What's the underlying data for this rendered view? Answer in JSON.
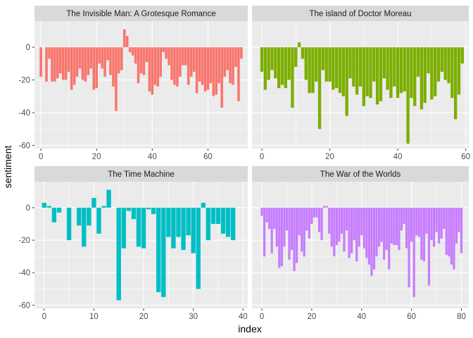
{
  "chart_data": {
    "type": "bar",
    "xlabel": "index",
    "ylabel": "sentiment",
    "legend": "none",
    "grid": true,
    "panels": [
      {
        "title": "The Invisible Man: A Grotesque Romance",
        "color": "#F8766D",
        "xlim": [
          -2.3,
          74.3
        ],
        "xticks": [
          0,
          20,
          40,
          60
        ],
        "values": [
          -18,
          0,
          -21,
          -7,
          -21,
          -21,
          -19,
          -16,
          -20,
          -20,
          -15,
          -26,
          -23,
          -18,
          -13,
          -20,
          -21,
          -17,
          -13,
          -26,
          -25,
          -10,
          -13,
          -18,
          -8,
          -17,
          -24,
          -39,
          -16,
          -14,
          11,
          7,
          -3,
          -5,
          -10,
          -22,
          -16,
          -17,
          -9,
          -27,
          -29,
          -23,
          -24,
          -18,
          -3,
          -7,
          -11,
          -20,
          -23,
          -24,
          -18,
          -11,
          -11,
          -23,
          -18,
          -15,
          -28,
          -21,
          -23,
          -27,
          -26,
          -22,
          -30,
          -29,
          -22,
          -37,
          -18,
          -14,
          -22,
          -23,
          -12,
          -33,
          -7
        ]
      },
      {
        "title": "The island of Doctor Moreau",
        "color": "#7CAE00",
        "xlim": [
          -2.9,
          60.9
        ],
        "xticks": [
          0,
          20,
          40,
          60
        ],
        "values": [
          -15,
          -26,
          -20,
          -14,
          -19,
          -25,
          -23,
          -25,
          -20,
          -37,
          -12,
          3,
          -7,
          -20,
          -28,
          -28,
          -21,
          -50,
          -14,
          -21,
          -21,
          -26,
          -25,
          -28,
          -30,
          -42,
          -19,
          -24,
          -29,
          -24,
          -36,
          -30,
          -31,
          -21,
          -35,
          -33,
          -19,
          -26,
          -31,
          -24,
          -31,
          -28,
          -27,
          -59,
          -31,
          -36,
          -18,
          -38,
          -34,
          -16,
          -32,
          -30,
          -21,
          -15,
          -20,
          -22,
          -31,
          -44,
          -29,
          -10
        ]
      },
      {
        "title": "The Time Machine",
        "color": "#00BFC4",
        "xlim": [
          -1.95,
          40.95
        ],
        "xticks": [
          0,
          10,
          20,
          30,
          40
        ],
        "values": [
          3,
          1,
          -9,
          -3,
          0,
          -20,
          0,
          -11,
          -24,
          -11,
          6,
          -16,
          1,
          11,
          0,
          -57,
          -25,
          -2,
          -7,
          -24,
          -25,
          -1,
          -4,
          -52,
          -55,
          -18,
          -25,
          -18,
          -26,
          -17,
          -28,
          -50,
          3,
          -20,
          -10,
          -10,
          -16,
          -18,
          -20
        ]
      },
      {
        "title": "The War of the Worlds",
        "color": "#C77CFF",
        "xlim": [
          -3.95,
          82.95
        ],
        "xticks": [
          0,
          20,
          40,
          60,
          80
        ],
        "values": [
          -5,
          -30,
          -9,
          -13,
          -28,
          -13,
          -24,
          -37,
          -36,
          -24,
          -14,
          -32,
          -26,
          -39,
          -34,
          -17,
          -27,
          -30,
          -14,
          -19,
          -10,
          -6,
          -6,
          -15,
          -20,
          1,
          1,
          -16,
          -24,
          -30,
          -23,
          -21,
          -16,
          -27,
          -14,
          -31,
          -28,
          -20,
          -33,
          -24,
          -17,
          -25,
          -31,
          -35,
          -42,
          -38,
          -30,
          -24,
          -21,
          -32,
          -26,
          -38,
          -22,
          -23,
          -23,
          -26,
          -14,
          -10,
          -25,
          -49,
          -21,
          -55,
          -17,
          -18,
          -32,
          -33,
          -16,
          -48,
          -20,
          -24,
          -15,
          -22,
          -19,
          -13,
          -29,
          -30,
          -35,
          -38,
          -22,
          -15,
          -28
        ]
      }
    ],
    "ylim": [
      -62,
      16
    ],
    "yticks": [
      -60,
      -40,
      -20,
      0
    ]
  }
}
